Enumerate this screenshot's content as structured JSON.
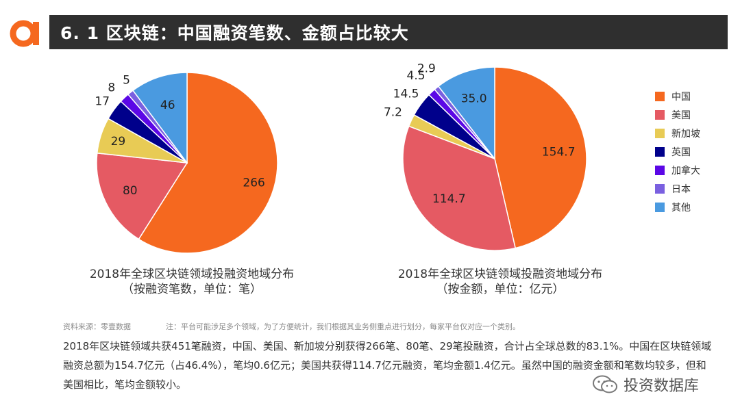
{
  "header": {
    "title": "6. 1 区块链：中国融资笔数、金额占比较大"
  },
  "colors": {
    "中国": "#f5681f",
    "美国": "#e55a63",
    "新加坡": "#e8cb55",
    "英国": "#00008b",
    "加拿大": "#5b07e6",
    "日本": "#7a60e0",
    "其他": "#4a9ae0"
  },
  "chart_data": [
    {
      "type": "pie",
      "title": "2018年全球区块链领域投融资地域分布",
      "subtitle": "（按融资笔数，单位：笔）",
      "labels": [
        "中国",
        "美国",
        "新加坡",
        "英国",
        "加拿大",
        "日本",
        "其他"
      ],
      "values": [
        266,
        80,
        29,
        17,
        8,
        5,
        46
      ],
      "data_labels": [
        "266",
        "80",
        "29",
        "17",
        "8",
        "5",
        "46"
      ]
    },
    {
      "type": "pie",
      "title": "2018年全球区块链领域投融资地域分布",
      "subtitle": "（按金额，单位：亿元）",
      "labels": [
        "中国",
        "美国",
        "新加坡",
        "英国",
        "加拿大",
        "日本",
        "其他"
      ],
      "values": [
        154.7,
        114.7,
        7.2,
        14.5,
        4.5,
        2.9,
        35.0
      ],
      "data_labels": [
        "154.7",
        "114.7",
        "7.2",
        "14.5",
        "4.5",
        "2.9",
        "35.0"
      ]
    }
  ],
  "legend": [
    "中国",
    "美国",
    "新加坡",
    "英国",
    "加拿大",
    "日本",
    "其他"
  ],
  "footer": {
    "source": "资料来源：零壹数据",
    "note": "注：平台可能涉足多个领域，为了方便统计，我们根据其业务侧重点进行划分，每家平台仅对应一个类别。",
    "paragraph": "2018年区块链领域共获451笔融资，中国、美国、新加坡分别获得266笔、80笔、29笔投融资，合计占全球总数的83.1%。中国在区块链领域融资总额为154.7亿元（占46.4%），笔均0.6亿元；美国共获得114.7亿元融资，笔均金额1.4亿元。虽然中国的融资金额和笔数均较多，但和美国相比，笔均金额较小。",
    "watermark": "投资数据库"
  }
}
